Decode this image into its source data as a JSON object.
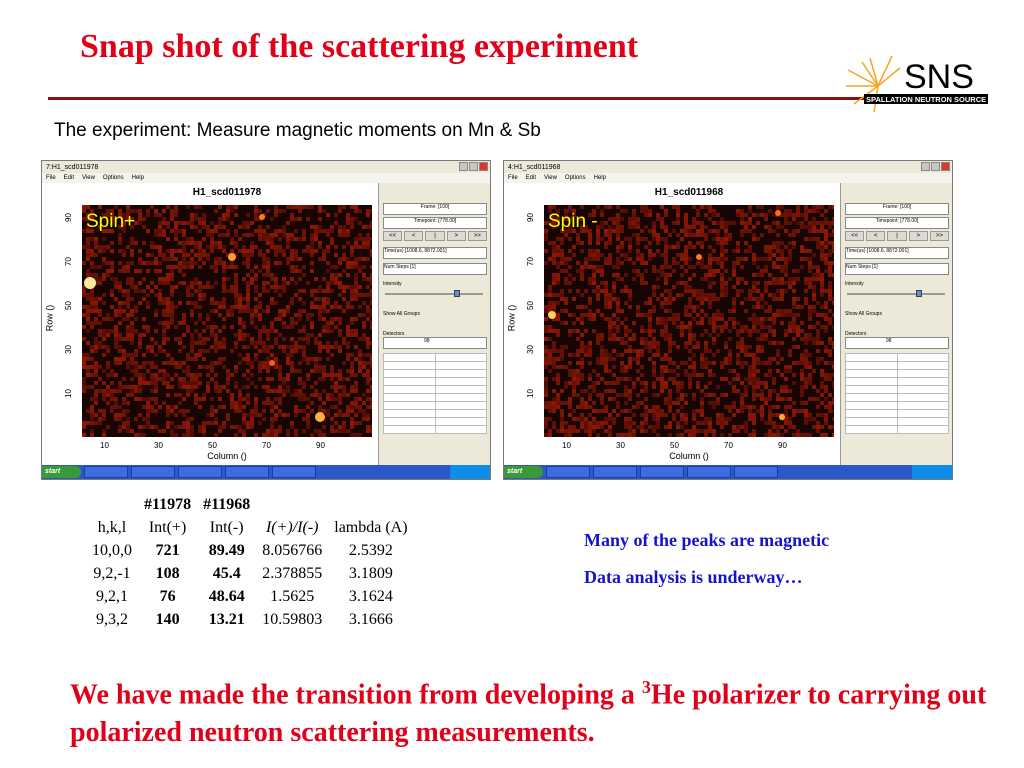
{
  "title": "Snap shot of the scattering experiment",
  "logo": {
    "text": "SNS",
    "subtext": "SPALLATION NEUTRON SOURCE",
    "accent": "#f7a51c"
  },
  "subtitle": "The experiment: Measure magnetic moments on Mn & Sb",
  "screenshots": [
    {
      "window_title": "7:H1_scd011978",
      "menu": [
        "File",
        "Edit",
        "View",
        "Options",
        "Help"
      ],
      "plot_title": "H1_scd011978",
      "spin_label": "Spin+",
      "y_label": "Row ()",
      "x_label": "Column ()",
      "y_ticks": [
        "90",
        "70",
        "50",
        "30",
        "10"
      ],
      "x_ticks": [
        "10",
        "30",
        "50",
        "70",
        "90"
      ],
      "panel": {
        "frame": "Frame: [100]",
        "timepoint": "Timepoint: [778.00]",
        "tof_buttons": [
          "<<",
          "<",
          "|",
          ">",
          ">>"
        ],
        "timebin": "Time(us) [1008.6, 8872.001]",
        "num_steps": "Num Steps [1]",
        "intensity_label": "Intensity",
        "intensity_level": 0.75,
        "show_all": "Show All Groups",
        "detectors_label": "Detectors",
        "detectors_value": "98"
      },
      "taskbar": {
        "start": "start"
      }
    },
    {
      "window_title": "4:H1_scd011968",
      "menu": [
        "File",
        "Edit",
        "View",
        "Options",
        "Help"
      ],
      "plot_title": "H1_scd011968",
      "spin_label": "Spin -",
      "y_label": "Row ()",
      "x_label": "Column ()",
      "y_ticks": [
        "90",
        "70",
        "50",
        "30",
        "10"
      ],
      "x_ticks": [
        "10",
        "30",
        "50",
        "70",
        "90"
      ],
      "panel": {
        "frame": "Frame: [100]",
        "timepoint": "Timepoint: [778.00]",
        "tof_buttons": [
          "<<",
          "<",
          "|",
          ">",
          ">>"
        ],
        "timebin": "Time(us) [1008.6, 8872.001]",
        "num_steps": "Num Steps [1]",
        "intensity_label": "Intensity",
        "intensity_level": 0.75,
        "show_all": "Show All Groups",
        "detectors_label": "Detectors",
        "detectors_value": "98"
      },
      "taskbar": {
        "start": "start"
      }
    }
  ],
  "table": {
    "header1": [
      "",
      "#11978",
      "#11968",
      "",
      ""
    ],
    "header2": [
      "h,k,l",
      "Int(+)",
      "Int(-)",
      "I(+)/I(-)",
      "lambda (A)"
    ],
    "rows": [
      [
        "10,0,0",
        "721",
        "89.49",
        "8.056766",
        "2.5392"
      ],
      [
        "9,2,-1",
        "108",
        "45.4",
        "2.378855",
        "3.1809"
      ],
      [
        "9,2,1",
        "76",
        "48.64",
        "1.5625",
        "3.1624"
      ],
      [
        "9,3,2",
        "140",
        "13.21",
        "10.59803",
        "3.1666"
      ]
    ]
  },
  "notes": [
    "Many of the peaks are magnetic",
    "Data analysis is underway…"
  ],
  "conclusion": {
    "part1": "We have made the transition from developing a ",
    "superscript": "3",
    "part2": "He polarizer to carrying out polarized neutron scattering measurements."
  },
  "colors": {
    "title": "#e0001a",
    "notes": "#1414c8",
    "rule": "#8b1010"
  }
}
